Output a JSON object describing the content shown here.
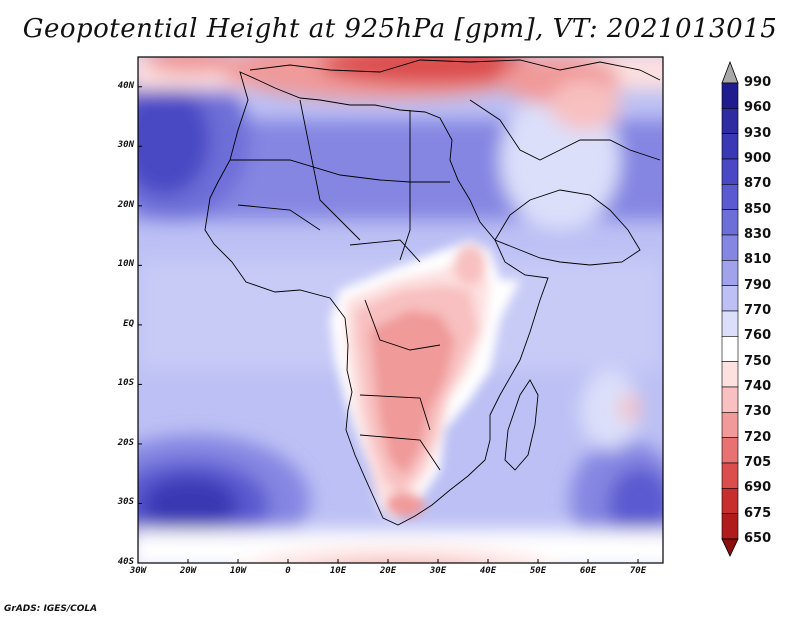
{
  "title": "Geopotential Height at 925hPa [gpm], VT: 2021013015",
  "footer": "GrADS: IGES/COLA",
  "map": {
    "variable": "Geopotential Height at 925hPa",
    "units": "gpm",
    "valid_time": "2021013015",
    "lon_range": [
      -30,
      75
    ],
    "lat_range": [
      -40,
      45
    ],
    "lat_labels": [
      "40N",
      "30N",
      "20N",
      "10N",
      "EQ",
      "10S",
      "20S",
      "30S",
      "40S"
    ],
    "lon_labels": [
      "30W",
      "20W",
      "10W",
      "0",
      "10E",
      "20E",
      "30E",
      "40E",
      "50E",
      "60E",
      "70E"
    ]
  },
  "colorbar": {
    "levels": [
      "990",
      "960",
      "930",
      "900",
      "870",
      "850",
      "830",
      "810",
      "790",
      "770",
      "760",
      "750",
      "740",
      "730",
      "720",
      "705",
      "690",
      "675",
      "650"
    ],
    "colors": [
      "#a8a8a8",
      "#1e1c8e",
      "#2e2ca0",
      "#3a38b4",
      "#4a48c4",
      "#5b5ad0",
      "#6e6ed8",
      "#8586e2",
      "#a0a2ec",
      "#bcc0f4",
      "#dcdffa",
      "#ffffff",
      "#fde0e0",
      "#f8c0c0",
      "#f09a9a",
      "#e87272",
      "#dc4e4e",
      "#c82e2e",
      "#b01c1c",
      "#8a0e0e"
    ]
  }
}
